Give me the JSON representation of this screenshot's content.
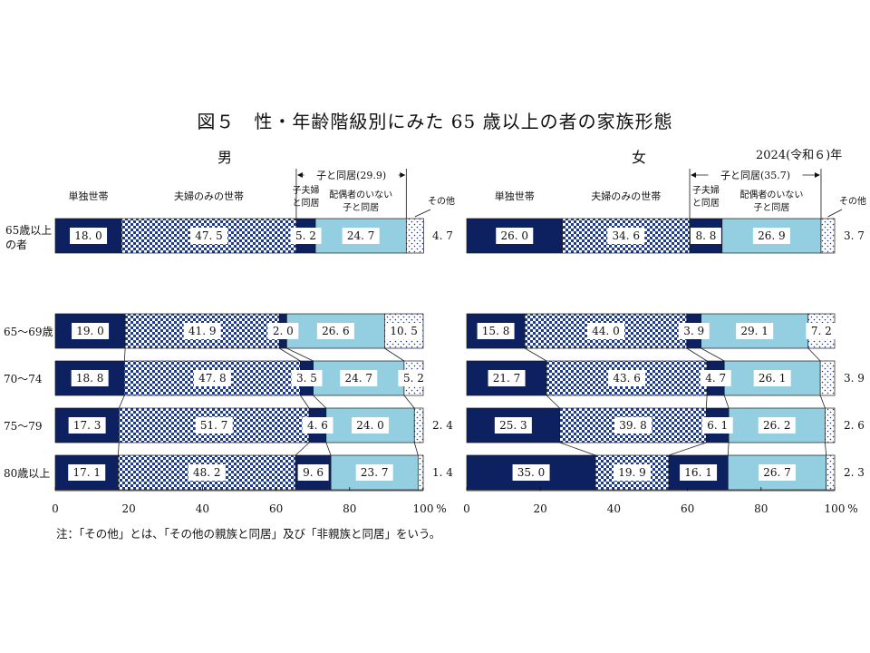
{
  "figure": {
    "title": "図５　性・年齢階級別にみた 65 歳以上の者の家族形態",
    "year": "2024(令和６)年",
    "note": "注：「その他」とは、「その他の親族と同居」及び「非親族と同居」をいう。"
  },
  "colors": {
    "single": "#0d2060",
    "couple_pattern_dark": "#1f3a8a",
    "with_married_child": "#0d2060",
    "with_unmarried_child": "#93cfe0",
    "other_dots": "#1f3a8a",
    "connector": "#222222"
  },
  "chart_data": [
    {
      "type": "bar",
      "stacked": true,
      "orientation": "horizontal",
      "panel_title": "男",
      "legend_labels": {
        "single": "単独世帯",
        "couple": "夫婦のみの世帯",
        "married_child": "子夫婦と同居",
        "unmarried_child": "配偶者のいない子と同居",
        "other": "その他",
        "child_group": "子と同居(29.9)"
      },
      "series_names": [
        "単独世帯",
        "夫婦のみの世帯",
        "子夫婦と同居",
        "配偶者のいない子と同居",
        "その他"
      ],
      "total": {
        "category": "65歳以上の者",
        "values": [
          18.0,
          47.5,
          5.2,
          24.7,
          4.7
        ]
      },
      "categories": [
        "65〜69歳",
        "70〜74",
        "75〜79",
        "80歳以上"
      ],
      "values": [
        [
          19.0,
          41.9,
          2.0,
          26.6,
          10.5
        ],
        [
          18.8,
          47.8,
          3.5,
          24.7,
          5.2
        ],
        [
          17.3,
          51.7,
          4.6,
          24.0,
          2.4
        ],
        [
          17.1,
          48.2,
          9.6,
          23.7,
          1.4
        ]
      ],
      "xlim": [
        0,
        100
      ],
      "x_ticks": [
        "0",
        "20",
        "40",
        "60",
        "80",
        "100"
      ],
      "x_unit": "%"
    },
    {
      "type": "bar",
      "stacked": true,
      "orientation": "horizontal",
      "panel_title": "女",
      "legend_labels": {
        "single": "単独世帯",
        "couple": "夫婦のみの世帯",
        "married_child": "子夫婦と同居",
        "unmarried_child": "配偶者のいない子と同居",
        "other": "その他",
        "child_group": "子と同居(35.7)"
      },
      "series_names": [
        "単独世帯",
        "夫婦のみの世帯",
        "子夫婦と同居",
        "配偶者のいない子と同居",
        "その他"
      ],
      "total": {
        "category": "65歳以上の者",
        "values": [
          26.0,
          34.6,
          8.8,
          26.9,
          3.7
        ]
      },
      "categories": [
        "65〜69歳",
        "70〜74",
        "75〜79",
        "80歳以上"
      ],
      "values": [
        [
          15.8,
          44.0,
          3.9,
          29.1,
          7.2
        ],
        [
          21.7,
          43.6,
          4.7,
          26.1,
          3.9
        ],
        [
          25.3,
          39.8,
          6.1,
          26.2,
          2.6
        ],
        [
          35.0,
          19.9,
          16.1,
          26.7,
          2.3
        ]
      ],
      "xlim": [
        0,
        100
      ],
      "x_ticks": [
        "0",
        "20",
        "40",
        "60",
        "80",
        "100"
      ],
      "x_unit": "%"
    }
  ]
}
